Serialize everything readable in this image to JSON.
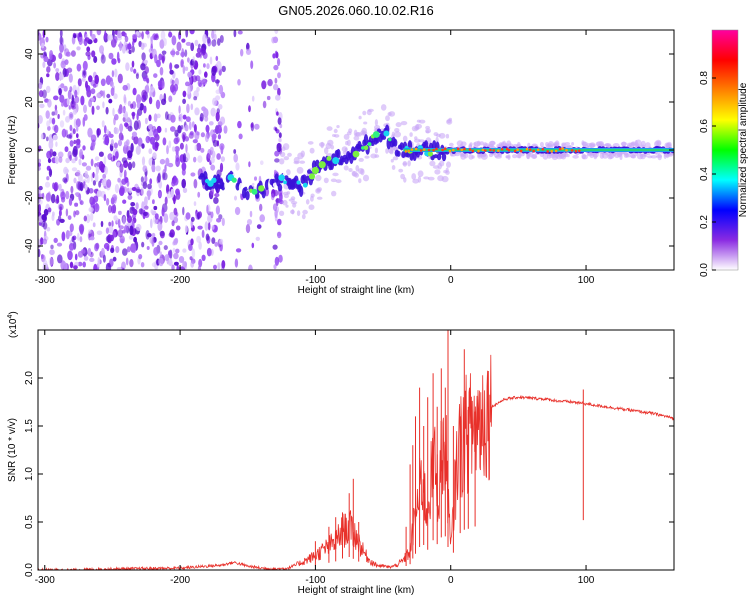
{
  "title": "GN05.2026.060.10.02.R16",
  "chart_data": [
    {
      "type": "heatmap",
      "xlabel": "Height of straight line (km)",
      "ylabel": "Frequency (Hz)",
      "xlim": [
        -305,
        165
      ],
      "ylim": [
        -50,
        50
      ],
      "xticks": [
        -300,
        -200,
        -100,
        0,
        100
      ],
      "yticks": [
        -40,
        -20,
        0,
        20,
        40
      ],
      "colorbar": {
        "label": "Normalized spectral amplitude",
        "range": [
          0.0,
          1.0
        ],
        "ticks": [
          "0.0",
          "0.2",
          "0.4",
          "0.6",
          "0.8"
        ],
        "tick_values": [
          0.0,
          0.2,
          0.4,
          0.6,
          0.8
        ],
        "colors": [
          "#ffffff",
          "#8a2be2",
          "#0000ff",
          "#00ffff",
          "#00ff00",
          "#ffff00",
          "#ff8000",
          "#ff0000",
          "#ff00a0"
        ]
      },
      "ridge": {
        "x": [
          -180,
          -170,
          -160,
          -150,
          -120,
          -110,
          -100,
          -90,
          -80,
          -70,
          -60,
          -50,
          -40,
          -30,
          -20,
          -10,
          0,
          50,
          100,
          165
        ],
        "y": [
          -13,
          -14,
          -12,
          -18,
          -12,
          -15,
          -8,
          -5,
          -3,
          -1,
          3,
          8,
          1,
          0,
          0,
          -1,
          0,
          0,
          0,
          0
        ]
      },
      "noise_region_x": [
        -305,
        -125
      ],
      "gap_x": [
        -168,
        -130
      ]
    },
    {
      "type": "line",
      "xlabel": "Height of straight line (km)",
      "ylabel": "SNR (10 * v/v)",
      "yscale_label": "(x10",
      "yscale_exp": "4",
      "xlim": [
        -305,
        165
      ],
      "ylim": [
        0,
        2.5
      ],
      "xticks": [
        -300,
        -200,
        -100,
        0,
        100
      ],
      "yticks": [
        "0.0",
        "0.5",
        "1.0",
        "1.5",
        "2.0"
      ],
      "ytick_values": [
        0.0,
        0.5,
        1.0,
        1.5,
        2.0
      ],
      "color": "#e8302a",
      "series": {
        "x": [
          -305,
          -280,
          -250,
          -200,
          -170,
          -160,
          -150,
          -140,
          -130,
          -120,
          -110,
          -100,
          -90,
          -85,
          -80,
          -75,
          -70,
          -65,
          -60,
          -55,
          -50,
          -45,
          -40,
          -35,
          -30,
          -27,
          -24,
          -21,
          -18,
          -15,
          -12,
          -9,
          -6,
          -3,
          0,
          5,
          10,
          15,
          20,
          25,
          30,
          40,
          50,
          60,
          70,
          80,
          90,
          100,
          110,
          120,
          130,
          140,
          150,
          165
        ],
        "y": [
          0.0,
          0.0,
          0.01,
          0.02,
          0.05,
          0.08,
          0.04,
          0.02,
          0.01,
          0.02,
          0.08,
          0.15,
          0.25,
          0.3,
          0.4,
          0.45,
          0.35,
          0.2,
          0.1,
          0.05,
          0.04,
          0.03,
          0.05,
          0.1,
          0.2,
          0.5,
          0.7,
          1.0,
          0.6,
          0.9,
          1.1,
          0.8,
          1.3,
          1.1,
          0.2,
          1.2,
          1.4,
          1.45,
          1.55,
          1.6,
          1.7,
          1.78,
          1.8,
          1.79,
          1.78,
          1.76,
          1.75,
          1.73,
          1.71,
          1.69,
          1.67,
          1.65,
          1.63,
          1.58
        ]
      },
      "spikes": [
        {
          "x": -100,
          "y": 0.3
        },
        {
          "x": -90,
          "y": 0.45
        },
        {
          "x": -85,
          "y": 0.55
        },
        {
          "x": -80,
          "y": 0.6
        },
        {
          "x": -75,
          "y": 0.8
        },
        {
          "x": -72,
          "y": 0.95
        },
        {
          "x": -68,
          "y": 0.5
        },
        {
          "x": -33,
          "y": 0.45
        },
        {
          "x": -30,
          "y": 1.1
        },
        {
          "x": -28,
          "y": 1.3
        },
        {
          "x": -26,
          "y": 1.6
        },
        {
          "x": -23,
          "y": 1.9
        },
        {
          "x": -20,
          "y": 1.5
        },
        {
          "x": -17,
          "y": 1.8
        },
        {
          "x": -13,
          "y": 2.05
        },
        {
          "x": -10,
          "y": 1.7
        },
        {
          "x": -7,
          "y": 2.1
        },
        {
          "x": -4,
          "y": 1.9
        },
        {
          "x": -2,
          "y": 2.55
        },
        {
          "x": 2,
          "y": 1.5
        },
        {
          "x": 7,
          "y": 1.6
        },
        {
          "x": 10,
          "y": 2.3
        },
        {
          "x": 13,
          "y": 1.7
        },
        {
          "x": 18,
          "y": 1.65
        },
        {
          "x": 98,
          "y": 1.88
        }
      ]
    }
  ]
}
